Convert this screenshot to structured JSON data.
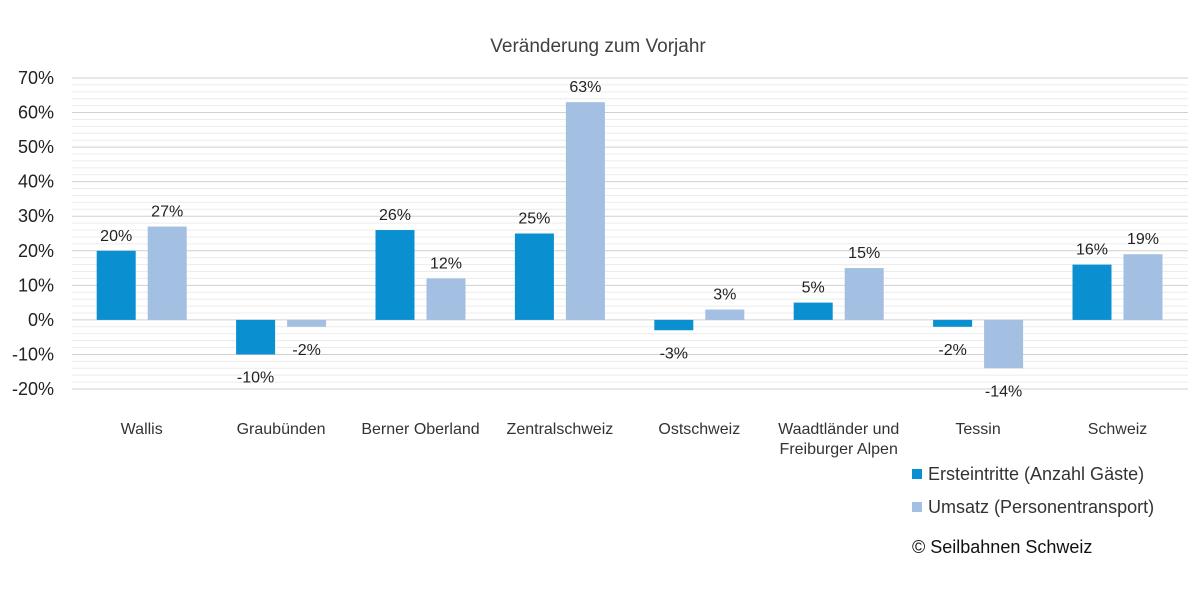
{
  "chart_data": {
    "type": "bar",
    "title": "Veränderung zum Vorjahr",
    "categories": [
      [
        "Wallis"
      ],
      [
        "Graubünden"
      ],
      [
        "Berner Oberland"
      ],
      [
        "Zentralschweiz"
      ],
      [
        "Ostschweiz"
      ],
      [
        "Waadtländer und",
        "Freiburger Alpen"
      ],
      [
        "Tessin"
      ],
      [
        "Schweiz"
      ]
    ],
    "series": [
      {
        "name": "Ersteintritte (Anzahl Gäste)",
        "color": "#0a8fd0",
        "values": [
          20,
          -10,
          26,
          25,
          -3,
          5,
          -2,
          16
        ],
        "labels": [
          "20%",
          "-10%",
          "26%",
          "25%",
          "-3%",
          "5%",
          "-2%",
          "16%"
        ]
      },
      {
        "name": "Umsatz (Personentransport)",
        "color": "#a3bfe2",
        "values": [
          27,
          -2,
          12,
          63,
          3,
          15,
          -14,
          19
        ],
        "labels": [
          "27%",
          "-2%",
          "12%",
          "63%",
          "3%",
          "15%",
          "-14%",
          "19%"
        ]
      }
    ],
    "ylim": [
      -20,
      70
    ],
    "yticks": [
      70,
      60,
      50,
      40,
      30,
      20,
      10,
      0,
      -10,
      -20
    ],
    "ytick_labels": [
      "70%",
      "60%",
      "50%",
      "40%",
      "30%",
      "20%",
      "10%",
      "0%",
      "-10%",
      "-20%"
    ],
    "grid": true,
    "legend_position": "bottom-right"
  },
  "copyright": "© Seilbahnen Schweiz"
}
